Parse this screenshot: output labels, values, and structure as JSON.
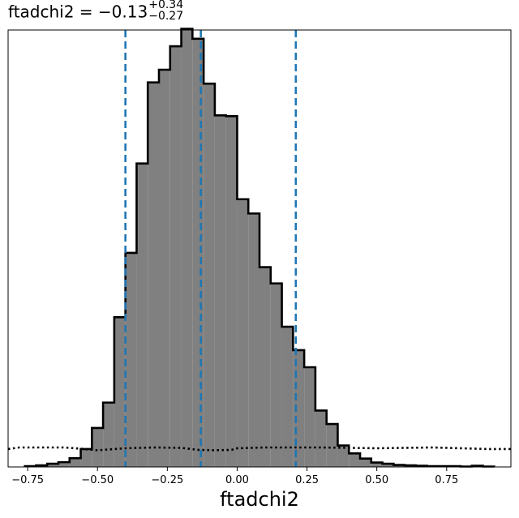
{
  "chart_data": {
    "type": "bar",
    "subtype": "step-histogram",
    "title": {
      "param": "ftadchi2",
      "equals": " = ",
      "median": "−0.13",
      "err_plus": "+0.34",
      "err_minus": "−0.27"
    },
    "xlabel": "ftadchi2",
    "ylabel": "",
    "xlim": [
      -0.82,
      0.98
    ],
    "ylim": [
      0,
      1.1
    ],
    "xticks": [
      -0.75,
      -0.5,
      -0.25,
      0.0,
      0.25,
      0.5,
      0.75
    ],
    "xtick_labels": [
      "−0.75",
      "−0.50",
      "−0.25",
      "0.00",
      "0.25",
      "0.50",
      "0.75"
    ],
    "yticks_shown": false,
    "grid": false,
    "bin_edges": [
      -0.76,
      -0.72,
      -0.68,
      -0.64,
      -0.6,
      -0.56,
      -0.52,
      -0.48,
      -0.44,
      -0.4,
      -0.36,
      -0.32,
      -0.28,
      -0.24,
      -0.2,
      -0.16,
      -0.12,
      -0.08,
      -0.04,
      0.0,
      0.04,
      0.08,
      0.12,
      0.16,
      0.2,
      0.24,
      0.28,
      0.32,
      0.36,
      0.4,
      0.44,
      0.48,
      0.52,
      0.56,
      0.6,
      0.64,
      0.68,
      0.72,
      0.76,
      0.8,
      0.84,
      0.88,
      0.92
    ],
    "counts": [
      0.002,
      0.004,
      0.008,
      0.012,
      0.022,
      0.045,
      0.098,
      0.162,
      0.377,
      0.539,
      0.764,
      0.968,
      1.0,
      1.059,
      1.103,
      1.078,
      0.965,
      0.885,
      0.883,
      0.674,
      0.638,
      0.503,
      0.462,
      0.353,
      0.294,
      0.251,
      0.142,
      0.108,
      0.054,
      0.034,
      0.021,
      0.011,
      0.008,
      0.005,
      0.004,
      0.003,
      0.002,
      0.002,
      0.002,
      0.001,
      0.003,
      0.001
    ],
    "bar_fill": "#808080",
    "bar_edge": "#000000",
    "vlines": [
      -0.4,
      -0.13,
      0.21
    ],
    "vline_color": "#1f77b4",
    "vline_style": "dashed",
    "prior_curve": {
      "style": "dotted",
      "color": "#000000",
      "x": [
        -0.82,
        -0.78,
        -0.7,
        -0.62,
        -0.58,
        -0.5,
        -0.4,
        -0.3,
        -0.2,
        -0.14,
        -0.08,
        -0.02,
        0.0,
        0.1,
        0.2,
        0.3,
        0.4,
        0.5,
        0.6,
        0.7,
        0.8,
        0.9,
        0.98
      ],
      "y": [
        0.045,
        0.049,
        0.049,
        0.049,
        0.047,
        0.042,
        0.047,
        0.049,
        0.048,
        0.043,
        0.042,
        0.043,
        0.047,
        0.049,
        0.049,
        0.049,
        0.048,
        0.047,
        0.048,
        0.049,
        0.047,
        0.045,
        0.045
      ]
    }
  }
}
